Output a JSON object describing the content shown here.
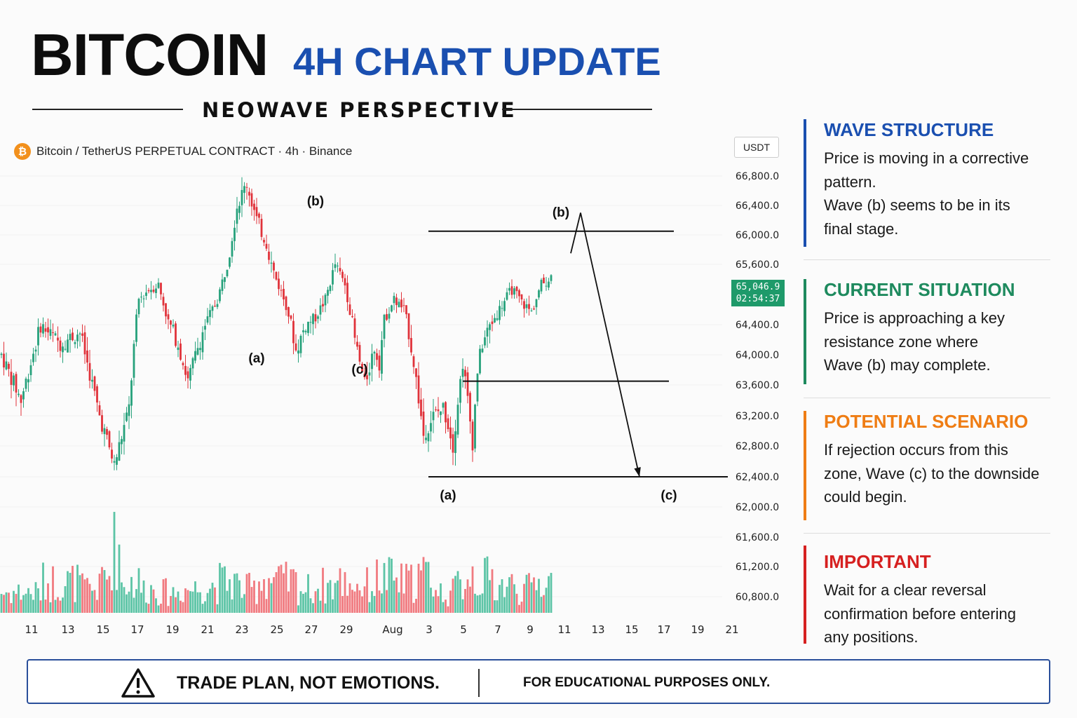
{
  "header": {
    "title": "BITCOIN",
    "title_accent": "4H CHART UPDATE",
    "subtitle": "NEOWAVE PERSPECTIVE"
  },
  "symbol": {
    "icon": "bitcoin-icon",
    "icon_glyph": "₿",
    "label": "Bitcoin / TetherUS PERPETUAL CONTRACT · 4h · Binance"
  },
  "price_axis": {
    "unit": "USDT",
    "current_price": "65,046.9",
    "countdown": "02:54:37"
  },
  "chart_data": {
    "type": "candlestick",
    "y_ticks": [
      66800,
      66400,
      66000,
      65600,
      64400,
      64000,
      63600,
      63200,
      62800,
      62400,
      62000,
      61600,
      61200,
      60800
    ],
    "y_tick_labels": [
      "66,800.0",
      "66,400.0",
      "66,000.0",
      "65,600.0",
      "64,400.0",
      "64,000.0",
      "63,600.0",
      "63,200.0",
      "62,800.0",
      "62,400.0",
      "62,000.0",
      "61,600.0",
      "61,200.0",
      "60,800.0"
    ],
    "x_tick_labels": [
      "11",
      "13",
      "15",
      "17",
      "19",
      "21",
      "23",
      "25",
      "27",
      "29",
      "Aug",
      "3",
      "5",
      "7",
      "9",
      "11",
      "13",
      "15",
      "17",
      "19",
      "21"
    ],
    "close_path": [
      [
        0,
        64000
      ],
      [
        2,
        63400
      ],
      [
        4,
        64400
      ],
      [
        6,
        64150
      ],
      [
        8,
        64300
      ],
      [
        10,
        63200
      ],
      [
        11.5,
        62550
      ],
      [
        13,
        63300
      ],
      [
        14,
        64900
      ],
      [
        15,
        65100
      ],
      [
        16,
        65200
      ],
      [
        17,
        64450
      ],
      [
        18,
        64150
      ],
      [
        19,
        63650
      ],
      [
        20,
        64100
      ],
      [
        21,
        64500
      ],
      [
        22,
        64900
      ],
      [
        23,
        65600
      ],
      [
        24,
        66400
      ],
      [
        25,
        66700
      ],
      [
        26,
        66200
      ],
      [
        27,
        65900
      ],
      [
        28,
        65300
      ],
      [
        29,
        64800
      ],
      [
        30,
        64050
      ],
      [
        31,
        64400
      ],
      [
        32,
        64550
      ],
      [
        33,
        64900
      ],
      [
        34,
        65600
      ],
      [
        35,
        65200
      ],
      [
        36,
        64200
      ],
      [
        37,
        63600
      ],
      [
        38,
        64100
      ],
      [
        38.5,
        63900
      ],
      [
        39,
        64500
      ],
      [
        40,
        64900
      ],
      [
        41,
        64700
      ],
      [
        42,
        63900
      ],
      [
        43,
        62950
      ],
      [
        44,
        63200
      ],
      [
        45,
        63300
      ],
      [
        45.5,
        63100
      ],
      [
        46,
        62800
      ],
      [
        46.5,
        63400
      ],
      [
        47,
        63900
      ],
      [
        47.5,
        63400
      ],
      [
        48,
        62850
      ],
      [
        48.5,
        63800
      ],
      [
        49,
        64150
      ],
      [
        50,
        64450
      ],
      [
        51,
        64800
      ],
      [
        52,
        65100
      ],
      [
        53,
        64850
      ],
      [
        54,
        64650
      ],
      [
        55,
        65200
      ],
      [
        56,
        65350
      ]
    ],
    "volume_profile": [
      [
        0,
        0.3
      ],
      [
        4,
        0.45
      ],
      [
        8,
        0.35
      ],
      [
        10,
        0.55
      ],
      [
        11,
        0.95
      ],
      [
        12,
        0.45
      ],
      [
        14,
        0.35
      ],
      [
        16,
        0.3
      ],
      [
        18,
        0.35
      ],
      [
        20,
        0.4
      ],
      [
        22,
        0.45
      ],
      [
        24,
        0.35
      ],
      [
        26,
        0.5
      ],
      [
        28,
        0.45
      ],
      [
        30,
        0.35
      ],
      [
        32,
        0.4
      ],
      [
        34,
        0.45
      ],
      [
        36,
        0.4
      ],
      [
        38,
        0.5
      ],
      [
        40,
        0.45
      ],
      [
        42,
        0.55
      ],
      [
        44,
        0.3
      ],
      [
        46,
        0.4
      ],
      [
        47,
        0.6
      ],
      [
        48,
        0.5
      ],
      [
        50,
        0.4
      ],
      [
        52,
        0.35
      ],
      [
        54,
        0.45
      ],
      [
        56,
        0.3
      ]
    ],
    "x_range": [
      0,
      80
    ],
    "y_range": [
      60600,
      67000
    ],
    "annotations": [
      {
        "label": "(b)",
        "x": 32,
        "y": 66400
      },
      {
        "label": "(a)",
        "x": 26,
        "y": 63900
      },
      {
        "label": "(c)",
        "x": 36.5,
        "y": 63750
      },
      {
        "label": "(b)",
        "x": 57,
        "y": 66250
      },
      {
        "label": "(a)",
        "x": 45.5,
        "y": 62100
      },
      {
        "label": "(c)",
        "x": 68,
        "y": 62100
      }
    ],
    "levels": [
      {
        "price": 66050,
        "x_from": 43.5,
        "x_to": 68.5
      },
      {
        "price": 63650,
        "x_from": 47,
        "x_to": 68
      },
      {
        "price": 62400,
        "x_from": 43.5,
        "x_to": 74
      }
    ],
    "projection": [
      [
        58,
        65750
      ],
      [
        59,
        66300
      ],
      [
        65,
        62400
      ]
    ]
  },
  "panels": [
    {
      "title": "WAVE STRUCTURE",
      "color": "#1a4fb0",
      "lines": [
        "Price is moving in a corrective",
        "pattern.",
        "Wave (b) seems to be in its",
        "final stage."
      ]
    },
    {
      "title": "CURRENT SITUATION",
      "color": "#1e8a5e",
      "lines": [
        "Price is approaching a key",
        "resistance zone where",
        "Wave (b) may complete."
      ]
    },
    {
      "title": "POTENTIAL SCENARIO",
      "color": "#ef7d14",
      "lines": [
        "If rejection occurs from this",
        "zone, Wave (c) to the downside",
        "could begin."
      ]
    },
    {
      "title": "IMPORTANT",
      "color": "#d62020",
      "lines": [
        "Wait for a clear reversal",
        "confirmation before entering",
        "any positions."
      ]
    }
  ],
  "footer": {
    "icon": "warning-icon",
    "left": "TRADE PLAN, NOT EMOTIONS.",
    "right": "FOR EDUCATIONAL PURPOSES ONLY."
  },
  "colors": {
    "up": "#26a17b",
    "down": "#e0323a",
    "up_vol": "#5cc4a6",
    "down_vol": "#f07a80"
  }
}
